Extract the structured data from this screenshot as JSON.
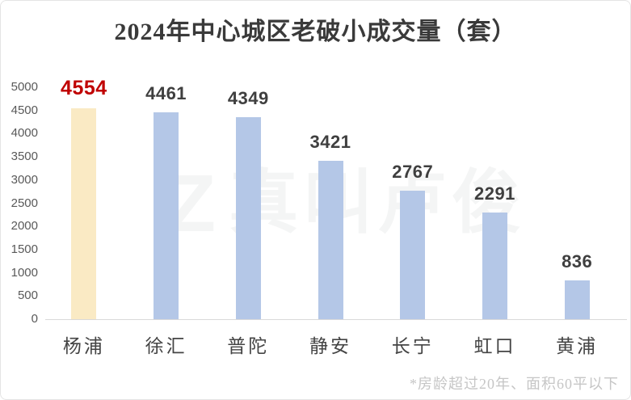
{
  "header": {
    "title": "2024年中心城区老破小成交量（套）"
  },
  "watermark": {
    "logo": "Z",
    "text": "真叫卢俊"
  },
  "footnote": {
    "text": "*房龄超过20年、面积60平以下"
  },
  "chart_data": {
    "type": "bar",
    "title": "2024年中心城区老破小成交量（套）",
    "categories": [
      "杨浦",
      "徐汇",
      "普陀",
      "静安",
      "长宁",
      "虹口",
      "黄浦"
    ],
    "values": [
      4554,
      4461,
      4349,
      3421,
      2767,
      2291,
      836
    ],
    "xlabel": "",
    "ylabel": "",
    "ylim": [
      0,
      5000
    ],
    "ytick_step": 500,
    "grid": false,
    "legend_position": "none",
    "highlight_index": 0,
    "colors": {
      "bar": "#B4C7E7",
      "highlight_bar": "#FAEAC4",
      "value_label": "#3F3F3F",
      "highlight_value_label": "#C00000",
      "axis_line": "#D9D9D9",
      "tick_label": "#595959"
    },
    "annotation": "*房龄超过20年、面积60平以下"
  }
}
